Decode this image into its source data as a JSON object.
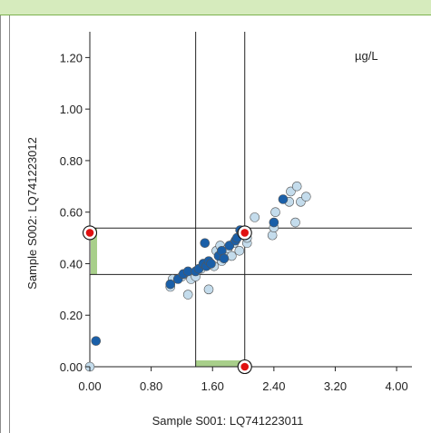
{
  "chart_data": {
    "type": "scatter",
    "unit": "µg/L",
    "xlabel": "Sample S001: LQ741223011",
    "ylabel": "Sample S002: LQ741223012",
    "xlim": [
      0,
      4.2
    ],
    "ylim": [
      0,
      1.3
    ],
    "xticks": [
      "0.00",
      "0.80",
      "1.60",
      "2.40",
      "3.20",
      "4.00"
    ],
    "xtick_values": [
      0,
      0.8,
      1.6,
      2.4,
      3.2,
      4.0
    ],
    "yticks": [
      "0.00",
      "0.20",
      "0.40",
      "0.60",
      "0.80",
      "1.00",
      "1.20"
    ],
    "ytick_values": [
      0,
      0.2,
      0.4,
      0.6,
      0.8,
      1.0,
      1.2
    ],
    "grid": false,
    "reference_lines": {
      "x": [
        1.38,
        2.02
      ],
      "y": [
        0.358,
        0.538
      ]
    },
    "range_highlight_color": "#a8cf8a",
    "colors": {
      "dark": "#1a5fa8",
      "light": "#c4dcec",
      "highlight": "#e01010",
      "outline": "#555555"
    },
    "series": [
      {
        "style": "dark",
        "points": [
          [
            0.08,
            0.1
          ],
          [
            1.05,
            0.32
          ],
          [
            1.15,
            0.34
          ],
          [
            1.22,
            0.36
          ],
          [
            1.28,
            0.37
          ],
          [
            1.38,
            0.37
          ],
          [
            1.42,
            0.38
          ],
          [
            1.48,
            0.4
          ],
          [
            1.52,
            0.39
          ],
          [
            1.55,
            0.41
          ],
          [
            1.58,
            0.4
          ],
          [
            1.5,
            0.48
          ],
          [
            1.68,
            0.43
          ],
          [
            1.72,
            0.45
          ],
          [
            1.75,
            0.42
          ],
          [
            1.82,
            0.47
          ],
          [
            1.9,
            0.49
          ],
          [
            1.92,
            0.5
          ],
          [
            1.96,
            0.53
          ],
          [
            1.98,
            0.52
          ],
          [
            2.02,
            0.51
          ],
          [
            2.4,
            0.56
          ],
          [
            2.52,
            0.65
          ]
        ]
      },
      {
        "style": "light",
        "points": [
          [
            0.0,
            0.0
          ],
          [
            1.05,
            0.31
          ],
          [
            1.08,
            0.34
          ],
          [
            1.2,
            0.35
          ],
          [
            1.28,
            0.28
          ],
          [
            1.32,
            0.34
          ],
          [
            1.38,
            0.35
          ],
          [
            1.45,
            0.38
          ],
          [
            1.55,
            0.3
          ],
          [
            1.62,
            0.39
          ],
          [
            1.65,
            0.45
          ],
          [
            1.7,
            0.47
          ],
          [
            1.72,
            0.41
          ],
          [
            1.75,
            0.44
          ],
          [
            1.8,
            0.46
          ],
          [
            1.85,
            0.43
          ],
          [
            1.88,
            0.48
          ],
          [
            1.95,
            0.45
          ],
          [
            2.05,
            0.48
          ],
          [
            2.05,
            0.5
          ],
          [
            2.15,
            0.58
          ],
          [
            2.38,
            0.51
          ],
          [
            2.4,
            0.54
          ],
          [
            2.42,
            0.6
          ],
          [
            2.6,
            0.64
          ],
          [
            2.62,
            0.68
          ],
          [
            2.68,
            0.56
          ],
          [
            2.7,
            0.7
          ],
          [
            2.75,
            0.64
          ],
          [
            2.82,
            0.66
          ]
        ]
      }
    ],
    "highlighted_points": [
      [
        2.02,
        0.52
      ],
      [
        0.0,
        0.52
      ],
      [
        2.02,
        0.0
      ]
    ]
  }
}
